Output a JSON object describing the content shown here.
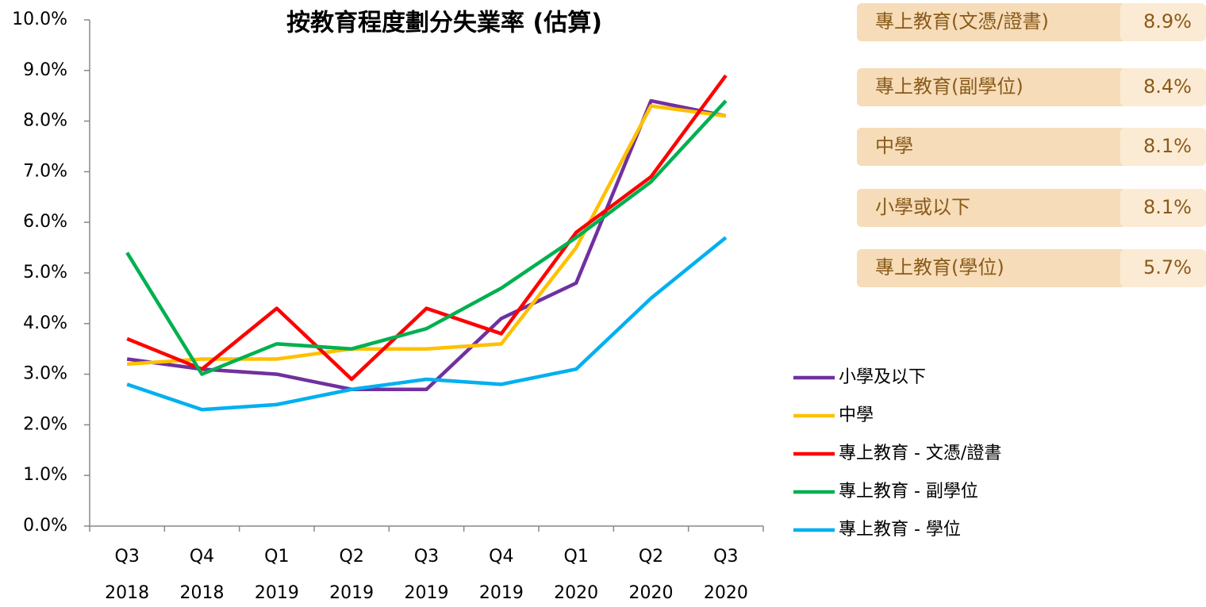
{
  "chart_data": {
    "type": "line",
    "title": "按教育程度劃分失業率 (估算)",
    "categories": [
      [
        "Q3",
        "2018"
      ],
      [
        "Q4",
        "2018"
      ],
      [
        "Q1",
        "2019"
      ],
      [
        "Q2",
        "2019"
      ],
      [
        "Q3",
        "2019"
      ],
      [
        "Q4",
        "2019"
      ],
      [
        "Q1",
        "2020"
      ],
      [
        "Q2",
        "2020"
      ],
      [
        "Q3",
        "2020"
      ]
    ],
    "series": [
      {
        "name": "小學及以下",
        "color": "#7030a0",
        "values": [
          3.3,
          3.1,
          3.0,
          2.7,
          2.7,
          4.1,
          4.8,
          8.4,
          8.1
        ]
      },
      {
        "name": "中學",
        "color": "#ffc000",
        "values": [
          3.2,
          3.3,
          3.3,
          3.5,
          3.5,
          3.6,
          5.5,
          8.3,
          8.1
        ]
      },
      {
        "name": "專上教育 - 文憑/證書",
        "color": "#ff0000",
        "values": [
          3.7,
          3.1,
          4.3,
          2.9,
          4.3,
          3.8,
          5.8,
          6.9,
          8.9
        ]
      },
      {
        "name": "專上教育 - 副學位",
        "color": "#00b050",
        "values": [
          5.4,
          3.0,
          3.6,
          3.5,
          3.9,
          4.7,
          5.7,
          6.8,
          8.4
        ]
      },
      {
        "name": "專上教育 - 學位",
        "color": "#00b0f0",
        "values": [
          2.8,
          2.3,
          2.4,
          2.7,
          2.9,
          2.8,
          3.1,
          4.5,
          5.7
        ]
      }
    ],
    "ylim": [
      0,
      10
    ],
    "yticks": [
      {
        "value": 0,
        "label": "0.0%"
      },
      {
        "value": 1,
        "label": "1.0%"
      },
      {
        "value": 2,
        "label": "2.0%"
      },
      {
        "value": 3,
        "label": "3.0%"
      },
      {
        "value": 4,
        "label": "4.0%"
      },
      {
        "value": 5,
        "label": "5.0%"
      },
      {
        "value": 6,
        "label": "6.0%"
      },
      {
        "value": 7,
        "label": "7.0%"
      },
      {
        "value": 8,
        "label": "8.0%"
      },
      {
        "value": 9,
        "label": "9.0%"
      },
      {
        "value": 10,
        "label": "10.0%"
      }
    ],
    "grid": false,
    "legend": "right",
    "panel": [
      {
        "name": "專上教育(文憑/證書)",
        "value": "8.9%"
      },
      {
        "name": "專上教育(副學位)",
        "value": "8.4%"
      },
      {
        "name": "中學",
        "value": "8.1%"
      },
      {
        "name": "小學或以下",
        "value": "8.1%"
      },
      {
        "name": "專上教育(學位)",
        "value": "5.7%"
      }
    ]
  }
}
